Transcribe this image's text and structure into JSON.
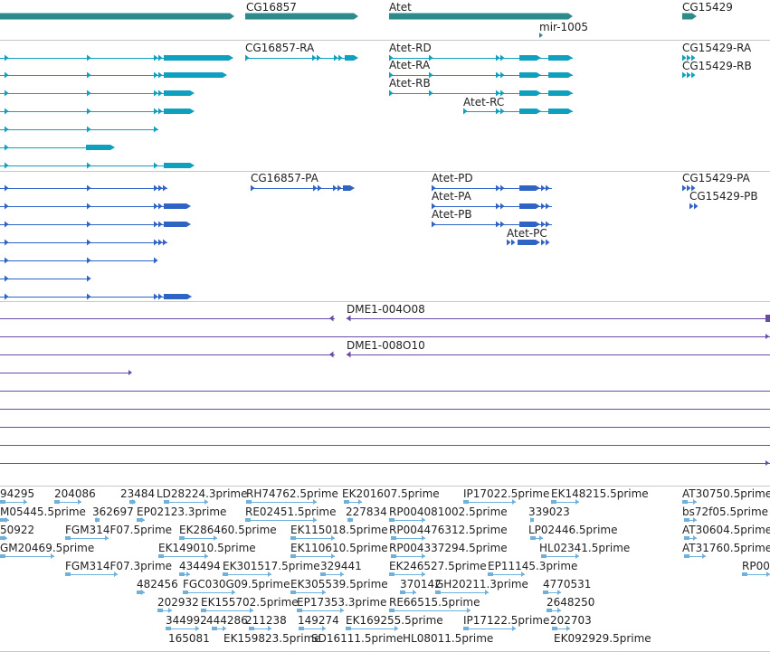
{
  "colors": {
    "gene": "#2e8b8b",
    "transcript": "#0f9fbf",
    "protein": "#2f63c4",
    "sequence": "#6a4aa8",
    "est": "#6fb1db",
    "separator": "#c8c8c8",
    "label": "#222222"
  },
  "genes": [
    {
      "name": ""
    },
    {
      "name": "CG16857"
    },
    {
      "name": "Atet"
    },
    {
      "name": "mir-1005"
    },
    {
      "name": "CG15429"
    }
  ],
  "transcripts": [
    {
      "name": "CG16857-RA"
    },
    {
      "name": "Atet-RD"
    },
    {
      "name": "Atet-RA"
    },
    {
      "name": "Atet-RB"
    },
    {
      "name": "Atet-RC"
    },
    {
      "name": "CG15429-RA"
    },
    {
      "name": "CG15429-RB"
    }
  ],
  "proteins": [
    {
      "name": "CG16857-PA"
    },
    {
      "name": "Atet-PD"
    },
    {
      "name": "Atet-PA"
    },
    {
      "name": "Atet-PB"
    },
    {
      "name": "Atet-PC"
    },
    {
      "name": "CG15429-PA"
    },
    {
      "name": "CG15429-PB"
    }
  ],
  "sequences": [
    {
      "name": "DME1-004O08"
    },
    {
      "name": "DME1-008O10"
    }
  ],
  "ests": [
    "94295",
    "204086",
    "23484",
    "LD28224.3prime",
    "RH74762.5prime",
    "EK201607.5prime",
    "IP17022.5prime",
    "EK148215.5prime",
    "AT30750.5prime",
    "M05445.5prime",
    "362697",
    "EP02123.3prime",
    "RE02451.5prime",
    "227834",
    "RP004081002.5prime",
    "339023",
    "bs72f05.5prime",
    "50922",
    "FGM314F07.5prime",
    "EK286460.5prime",
    "EK115018.5prime",
    "RP004476312.5prime",
    "LP02446.5prime",
    "AT30604.5prime",
    "GM20469.5prime",
    "EK149010.5prime",
    "EK110610.5prime",
    "RP004337294.5prime",
    "HL02341.5prime",
    "AT31760.5prime",
    "FGM314F07.3prime",
    "434494",
    "EK301517.5prime",
    "329441",
    "EK246527.5prime",
    "EP11145.3prime",
    "RP00",
    "482456",
    "FGC030G09.5prime",
    "EK305539.5prime",
    "370142",
    "GH20211.3prime",
    "4770531",
    "202932",
    "EK155702.5prime",
    "EP17353.3prime",
    "RE66515.5prime",
    "2648250",
    "344992",
    "444286",
    "211238",
    "149274",
    "EK169255.5prime",
    "IP17122.5prime",
    "202703",
    "165081",
    "EK159823.5prime",
    "SD16111.5prime",
    "HL08011.5prime",
    "EK092929.5prime"
  ]
}
